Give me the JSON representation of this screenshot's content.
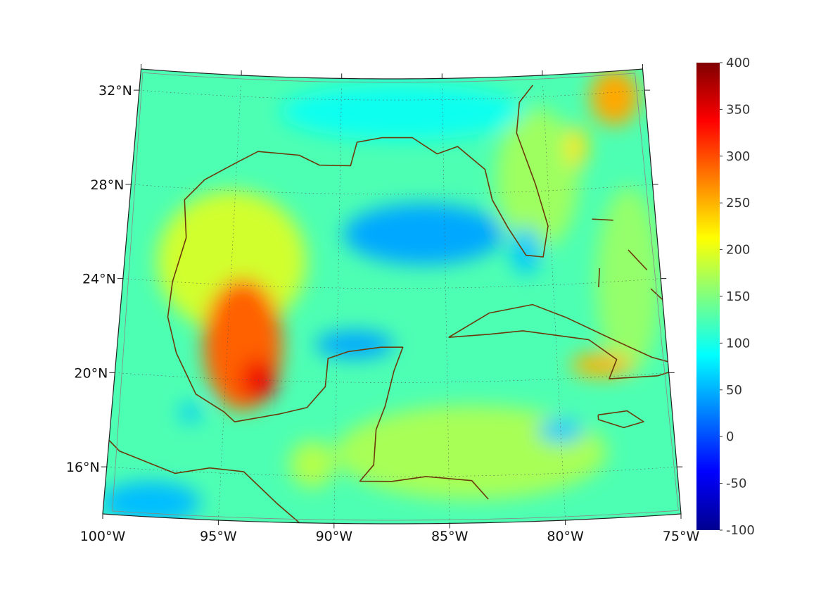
{
  "chart_data": {
    "type": "heatmap",
    "projection": "conic",
    "lon_range": [
      -100,
      -75
    ],
    "lat_range": [
      14,
      32.9
    ],
    "lon_ticks": [
      -100,
      -95,
      -90,
      -85,
      -80,
      -75
    ],
    "lon_labels": [
      "100°W",
      "95°W",
      "90°W",
      "85°W",
      "80°W",
      "75°W"
    ],
    "lat_ticks": [
      16,
      20,
      24,
      28,
      32
    ],
    "lat_labels": [
      "16°N",
      "20°N",
      "24°N",
      "28°N",
      "32°N"
    ],
    "colormap": "jet",
    "clim": [
      -100,
      400
    ],
    "colorbar_ticks": [
      400,
      350,
      300,
      250,
      200,
      150,
      100,
      50,
      0,
      -50,
      -100
    ],
    "colorbar_labels": [
      "400",
      "350",
      "300",
      "250",
      "200",
      "150",
      "100",
      "50",
      "0",
      "-50",
      "-100"
    ],
    "background_value": 125,
    "hotspots": [
      {
        "lon": -95.0,
        "lat": 25.0,
        "value": 190,
        "rlon": 3.5,
        "rlat": 3.0
      },
      {
        "lon": -84.0,
        "lat": 17.0,
        "value": 170,
        "rlon": 6.0,
        "rlat": 2.0
      },
      {
        "lon": -80.5,
        "lat": 28.5,
        "value": 165,
        "rlon": 2.0,
        "rlat": 3.0
      },
      {
        "lon": -76.5,
        "lat": 24.0,
        "value": 160,
        "rlon": 1.5,
        "rlat": 4.0
      },
      {
        "lon": -87.0,
        "lat": 31.5,
        "value": 95,
        "rlon": 6.0,
        "rlat": 1.2
      },
      {
        "lon": -94.3,
        "lat": 21.5,
        "value": 290,
        "rlon": 1.8,
        "rlat": 2.8
      },
      {
        "lon": -93.5,
        "lat": 20.0,
        "value": 345,
        "rlon": 0.8,
        "rlat": 0.9
      },
      {
        "lon": -95.0,
        "lat": 22.8,
        "value": 290,
        "rlon": 0.9,
        "rlat": 1.0
      },
      {
        "lon": -86.0,
        "lat": 26.3,
        "value": 45,
        "rlon": 3.8,
        "rlat": 1.3
      },
      {
        "lon": -89.2,
        "lat": 21.6,
        "value": 45,
        "rlon": 1.8,
        "rlat": 0.6
      },
      {
        "lon": -78.0,
        "lat": 20.5,
        "value": 250,
        "rlon": 1.4,
        "rlat": 0.5
      },
      {
        "lon": -76.5,
        "lat": 31.8,
        "value": 255,
        "rlon": 1.2,
        "rlat": 1.2
      },
      {
        "lon": -78.5,
        "lat": 29.8,
        "value": 225,
        "rlon": 0.5,
        "rlat": 0.9
      },
      {
        "lon": -98.0,
        "lat": 14.6,
        "value": 55,
        "rlon": 2.2,
        "rlat": 0.9
      },
      {
        "lon": -81.2,
        "lat": 25.5,
        "value": 60,
        "rlon": 0.7,
        "rlat": 1.0
      },
      {
        "lon": -96.5,
        "lat": 18.5,
        "value": 60,
        "rlon": 0.5,
        "rlat": 0.4
      },
      {
        "lon": -91.0,
        "lat": 16.5,
        "value": 175,
        "rlon": 1.0,
        "rlat": 1.0
      },
      {
        "lon": -80.0,
        "lat": 17.8,
        "value": 60,
        "rlon": 1.0,
        "rlat": 0.5
      }
    ],
    "coastlines": [
      [
        [
          -97.2,
          25.9
        ],
        [
          -97.4,
          27.5
        ],
        [
          -96.5,
          28.4
        ],
        [
          -95,
          29.2
        ],
        [
          -94,
          29.7
        ],
        [
          -92,
          29.6
        ],
        [
          -91,
          29.2
        ],
        [
          -89.5,
          29.2
        ],
        [
          -89.2,
          30.2
        ],
        [
          -88,
          30.4
        ],
        [
          -86.5,
          30.4
        ],
        [
          -85.3,
          29.7
        ],
        [
          -84.3,
          30
        ],
        [
          -83,
          29
        ],
        [
          -82.7,
          27.7
        ],
        [
          -82,
          26.5
        ],
        [
          -81.2,
          25.3
        ],
        [
          -80.4,
          25.2
        ],
        [
          -80.1,
          26.5
        ],
        [
          -80.6,
          28.3
        ],
        [
          -81.4,
          30.5
        ],
        [
          -81.2,
          31.8
        ],
        [
          -80.5,
          32.5
        ]
      ],
      [
        [
          -97.2,
          25.9
        ],
        [
          -97.7,
          24
        ],
        [
          -97.8,
          22.5
        ],
        [
          -97.3,
          21
        ],
        [
          -96.3,
          19.3
        ],
        [
          -95,
          18.6
        ],
        [
          -94.5,
          18.2
        ],
        [
          -92.5,
          18.6
        ],
        [
          -91.3,
          18.9
        ],
        [
          -90.5,
          19.8
        ],
        [
          -90.4,
          21
        ],
        [
          -89.5,
          21.3
        ],
        [
          -88,
          21.5
        ],
        [
          -87,
          21.5
        ],
        [
          -87.4,
          20.5
        ],
        [
          -87.8,
          19
        ],
        [
          -88.2,
          18
        ],
        [
          -88.3,
          16.5
        ],
        [
          -88.9,
          15.8
        ],
        [
          -87.5,
          15.8
        ],
        [
          -86,
          16
        ],
        [
          -84,
          15.8
        ],
        [
          -83.3,
          15
        ]
      ],
      [
        [
          -100.2,
          17.3
        ],
        [
          -99.5,
          16.7
        ],
        [
          -97,
          15.9
        ],
        [
          -95.5,
          16.2
        ],
        [
          -94,
          16.1
        ],
        [
          -92.5,
          14.8
        ],
        [
          -91.5,
          14
        ]
      ],
      [
        [
          -84.9,
          21.9
        ],
        [
          -83,
          22.9
        ],
        [
          -81,
          23.2
        ],
        [
          -79.5,
          22.6
        ],
        [
          -77.5,
          21.6
        ],
        [
          -75.7,
          20.7
        ],
        [
          -74.2,
          20.2
        ],
        [
          -75.5,
          19.9
        ],
        [
          -77.7,
          19.9
        ],
        [
          -77.3,
          20.7
        ],
        [
          -78.5,
          21.6
        ],
        [
          -81.5,
          22.1
        ],
        [
          -83,
          22
        ],
        [
          -84.9,
          21.9
        ]
      ],
      [
        [
          -78.3,
          18.4
        ],
        [
          -77,
          18.5
        ],
        [
          -76.3,
          18
        ],
        [
          -77.2,
          17.8
        ],
        [
          -78.3,
          18.2
        ],
        [
          -78.3,
          18.4
        ]
      ],
      [
        [
          -74.3,
          18.4
        ],
        [
          -73.6,
          19.8
        ],
        [
          -72.5,
          19.9
        ]
      ],
      [
        [
          -78.0,
          26.7
        ],
        [
          -77.0,
          26.6
        ]
      ],
      [
        [
          -77.8,
          24.6
        ],
        [
          -77.9,
          23.8
        ]
      ],
      [
        [
          -76.4,
          25.3
        ],
        [
          -75.6,
          24.4
        ]
      ],
      [
        [
          -75.5,
          23.6
        ],
        [
          -75.0,
          23.1
        ]
      ]
    ]
  }
}
